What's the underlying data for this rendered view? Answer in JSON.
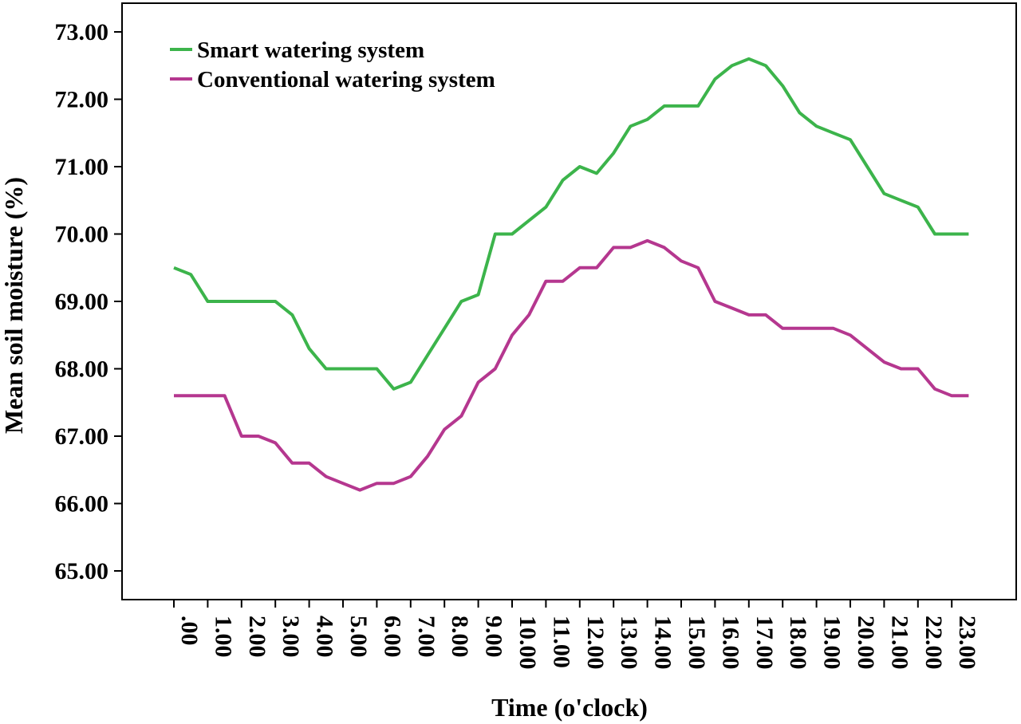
{
  "chart_data": {
    "type": "line",
    "title": "",
    "xlabel": "Time (o'clock)",
    "ylabel": "Mean soil moisture (%)",
    "ylim": [
      65,
      73
    ],
    "xlim": [
      -1,
      25
    ],
    "grid": false,
    "legend_position": "top-left",
    "yticks": [
      {
        "value": 65,
        "label": "65.00"
      },
      {
        "value": 66,
        "label": "66.00"
      },
      {
        "value": 67,
        "label": "67.00"
      },
      {
        "value": 68,
        "label": "68.00"
      },
      {
        "value": 69,
        "label": "69.00"
      },
      {
        "value": 70,
        "label": "70.00"
      },
      {
        "value": 71,
        "label": "71.00"
      },
      {
        "value": 72,
        "label": "72.00"
      },
      {
        "value": 73,
        "label": "73.00"
      }
    ],
    "xticks": [
      {
        "value": 0,
        "label": ".00"
      },
      {
        "value": 1,
        "label": "1.00"
      },
      {
        "value": 2,
        "label": "2.00"
      },
      {
        "value": 3,
        "label": "3.00"
      },
      {
        "value": 4,
        "label": "4.00"
      },
      {
        "value": 5,
        "label": "5.00"
      },
      {
        "value": 6,
        "label": "6.00"
      },
      {
        "value": 7,
        "label": "7.00"
      },
      {
        "value": 8,
        "label": "8.00"
      },
      {
        "value": 9,
        "label": "9.00"
      },
      {
        "value": 10,
        "label": "10.00"
      },
      {
        "value": 11,
        "label": "11.00"
      },
      {
        "value": 12,
        "label": "12.00"
      },
      {
        "value": 13,
        "label": "13.00"
      },
      {
        "value": 14,
        "label": "14.00"
      },
      {
        "value": 15,
        "label": "15.00"
      },
      {
        "value": 16,
        "label": "16.00"
      },
      {
        "value": 17,
        "label": "17.00"
      },
      {
        "value": 18,
        "label": "18.00"
      },
      {
        "value": 19,
        "label": "19.00"
      },
      {
        "value": 20,
        "label": "20.00"
      },
      {
        "value": 21,
        "label": "21.00"
      },
      {
        "value": 22,
        "label": "22.00"
      },
      {
        "value": 23,
        "label": "23.00"
      }
    ],
    "x": [
      0,
      0.5,
      1,
      1.5,
      2,
      2.5,
      3,
      3.5,
      4,
      4.5,
      5,
      5.5,
      6,
      6.5,
      7,
      7.5,
      8,
      8.5,
      9,
      9.5,
      10,
      10.5,
      11,
      11.5,
      12,
      12.5,
      13,
      13.5,
      14,
      14.5,
      15,
      15.5,
      16,
      16.5,
      17,
      17.5,
      18,
      18.5,
      19,
      19.5,
      20,
      20.5,
      21,
      21.5,
      22,
      22.5,
      23,
      23.5
    ],
    "series": [
      {
        "name": "Smart watering system",
        "color": "#3cb44b",
        "values": [
          69.5,
          69.4,
          69.0,
          69.0,
          69.0,
          69.0,
          69.0,
          68.8,
          68.3,
          68.0,
          68.0,
          68.0,
          68.0,
          67.7,
          67.8,
          68.2,
          68.6,
          69.0,
          69.1,
          70.0,
          70.0,
          70.2,
          70.4,
          70.8,
          71.0,
          70.9,
          71.2,
          71.6,
          71.7,
          71.9,
          71.9,
          71.9,
          72.3,
          72.5,
          72.6,
          72.5,
          72.2,
          71.8,
          71.6,
          71.5,
          71.4,
          71.0,
          70.6,
          70.5,
          70.4,
          70.0,
          70.0,
          70.0
        ]
      },
      {
        "name": "Conventional watering system",
        "color": "#b5378f",
        "values": [
          67.6,
          67.6,
          67.6,
          67.6,
          67.0,
          67.0,
          66.9,
          66.6,
          66.6,
          66.4,
          66.3,
          66.2,
          66.3,
          66.3,
          66.4,
          66.7,
          67.1,
          67.3,
          67.8,
          68.0,
          68.5,
          68.8,
          69.3,
          69.3,
          69.5,
          69.5,
          69.8,
          69.8,
          69.9,
          69.8,
          69.6,
          69.5,
          69.0,
          68.9,
          68.8,
          68.8,
          68.6,
          68.6,
          68.6,
          68.6,
          68.5,
          68.3,
          68.1,
          68.0,
          68.0,
          67.7,
          67.6,
          67.6
        ]
      }
    ]
  }
}
